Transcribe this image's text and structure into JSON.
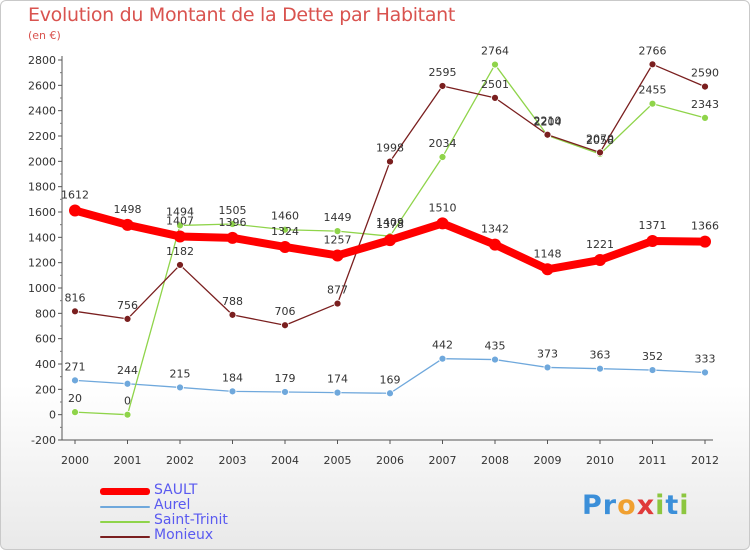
{
  "chart_data": {
    "type": "line",
    "title": "Evolution du Montant de la Dette par Habitant",
    "subtitle": "(en €)",
    "x": [
      "2000",
      "2001",
      "2002",
      "2003",
      "2004",
      "2005",
      "2006",
      "2007",
      "2008",
      "2009",
      "2010",
      "2011",
      "2012"
    ],
    "ylim": [
      -200,
      2800
    ],
    "yticks": [
      -200,
      0,
      200,
      400,
      600,
      800,
      1000,
      1200,
      1400,
      1600,
      1800,
      2000,
      2200,
      2400,
      2600,
      2800
    ],
    "grid": false,
    "legend_position": "bottom-left",
    "series": [
      {
        "name": "SAULT",
        "color": "#ff0000",
        "values": [
          1612,
          1498,
          1407,
          1396,
          1324,
          1257,
          1378,
          1510,
          1342,
          1148,
          1221,
          1371,
          1366
        ]
      },
      {
        "name": "Aurel",
        "color": "#6fa8dc",
        "values": [
          271,
          244,
          215,
          184,
          179,
          174,
          169,
          442,
          435,
          373,
          363,
          352,
          333
        ]
      },
      {
        "name": "Saint-Trinit",
        "color": "#8fd44a",
        "values": [
          20,
          0,
          1494,
          1505,
          1460,
          1449,
          1409,
          2034,
          2764,
          2204,
          2058,
          2455,
          2343
        ]
      },
      {
        "name": "Monieux",
        "color": "#7a1f1f",
        "values": [
          816,
          756,
          1182,
          788,
          706,
          877,
          1998,
          2595,
          2501,
          2210,
          2070,
          2766,
          2590
        ]
      }
    ]
  },
  "logo": {
    "text": "Proxiti",
    "letters": [
      "P",
      "r",
      "o",
      "x",
      "i",
      "t",
      "i"
    ],
    "colors": [
      "#3b8fd9",
      "#3b8fd9",
      "#f0a030",
      "#e03a3a",
      "#8cc63f",
      "#3b8fd9",
      "#8cc63f"
    ]
  }
}
